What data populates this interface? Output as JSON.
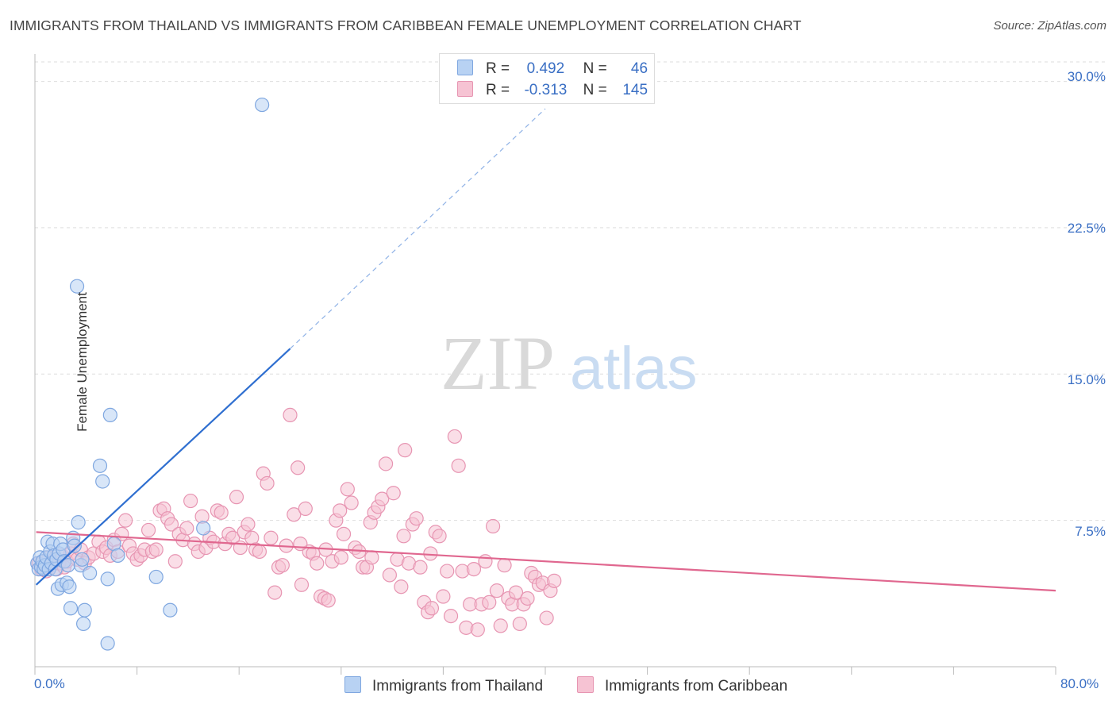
{
  "header": {
    "title": "IMMIGRANTS FROM THAILAND VS IMMIGRANTS FROM CARIBBEAN FEMALE UNEMPLOYMENT CORRELATION CHART",
    "source": "Source: ZipAtlas.com"
  },
  "watermark": {
    "zip": "ZIP",
    "atlas": "atlas"
  },
  "legend": {
    "r_label": "R =",
    "n_label": "N =",
    "thailand": {
      "r": "0.492",
      "n": "46"
    },
    "caribbean": {
      "r": "-0.313",
      "n": "145"
    }
  },
  "colors": {
    "thailand_fill": "#b8d2f3",
    "thailand_stroke": "#7fa7e0",
    "thailand_line": "#2f6fd0",
    "caribbean_fill": "#f6c3d3",
    "caribbean_stroke": "#e795b2",
    "caribbean_line": "#e0678f",
    "tick_text": "#3a6fc4",
    "grid": "#dddddd"
  },
  "chart_data": {
    "type": "scatter",
    "title": "IMMIGRANTS FROM THAILAND VS IMMIGRANTS FROM CARIBBEAN FEMALE UNEMPLOYMENT CORRELATION CHART",
    "xlabel": "",
    "ylabel": "Female Unemployment",
    "xlim": [
      0,
      80
    ],
    "ylim": [
      0,
      31
    ],
    "x_tick_labels": [
      "0.0%",
      "80.0%"
    ],
    "y_ticks": [
      7.5,
      15.0,
      22.5,
      30.0
    ],
    "y_tick_labels": [
      "7.5%",
      "15.0%",
      "22.5%",
      "30.0%"
    ],
    "grid": "horizontal dashed",
    "legend_position": "top-center",
    "series": [
      {
        "name": "Immigrants from Thailand",
        "r": 0.492,
        "n": 46,
        "trend": {
          "x0": 0.1,
          "y0": 4.2,
          "x1": 20.0,
          "y1": 16.3,
          "dashed_to_x": 40.0,
          "dashed_to_y": 28.6
        },
        "points": [
          [
            0.2,
            5.3
          ],
          [
            0.3,
            5.0
          ],
          [
            0.4,
            5.6
          ],
          [
            0.5,
            5.1
          ],
          [
            0.6,
            5.4
          ],
          [
            0.7,
            5.0
          ],
          [
            0.8,
            5.2
          ],
          [
            0.9,
            5.6
          ],
          [
            1.0,
            6.4
          ],
          [
            1.1,
            5.0
          ],
          [
            1.2,
            5.9
          ],
          [
            1.3,
            5.3
          ],
          [
            1.4,
            6.3
          ],
          [
            1.5,
            5.7
          ],
          [
            1.6,
            5.0
          ],
          [
            1.7,
            5.5
          ],
          [
            1.8,
            4.0
          ],
          [
            1.9,
            5.8
          ],
          [
            2.0,
            6.3
          ],
          [
            2.1,
            4.2
          ],
          [
            2.2,
            6.0
          ],
          [
            2.3,
            5.4
          ],
          [
            2.5,
            4.3
          ],
          [
            2.6,
            5.2
          ],
          [
            2.7,
            4.1
          ],
          [
            2.8,
            3.0
          ],
          [
            3.0,
            6.6
          ],
          [
            3.1,
            6.2
          ],
          [
            3.3,
            19.5
          ],
          [
            3.4,
            7.4
          ],
          [
            3.6,
            5.2
          ],
          [
            3.7,
            5.5
          ],
          [
            3.8,
            2.2
          ],
          [
            3.9,
            2.9
          ],
          [
            4.3,
            4.8
          ],
          [
            5.7,
            4.5
          ],
          [
            5.9,
            12.9
          ],
          [
            6.2,
            6.3
          ],
          [
            6.5,
            5.7
          ],
          [
            5.1,
            10.3
          ],
          [
            5.3,
            9.5
          ],
          [
            5.7,
            1.2
          ],
          [
            9.5,
            4.6
          ],
          [
            10.6,
            2.9
          ],
          [
            13.2,
            7.1
          ],
          [
            17.8,
            28.8
          ]
        ]
      },
      {
        "name": "Immigrants from Caribbean",
        "r": -0.313,
        "n": 145,
        "trend": {
          "x0": 0.1,
          "y0": 6.9,
          "x1": 80.0,
          "y1": 3.9
        },
        "points": [
          [
            0.3,
            5.3
          ],
          [
            0.5,
            5.0
          ],
          [
            0.7,
            5.4
          ],
          [
            0.9,
            4.9
          ],
          [
            1.1,
            5.6
          ],
          [
            1.3,
            5.2
          ],
          [
            1.5,
            5.5
          ],
          [
            1.7,
            5.0
          ],
          [
            1.9,
            5.3
          ],
          [
            2.1,
            5.7
          ],
          [
            2.3,
            5.1
          ],
          [
            2.5,
            5.4
          ],
          [
            2.8,
            5.8
          ],
          [
            3.0,
            6.3
          ],
          [
            3.3,
            5.5
          ],
          [
            3.6,
            6.0
          ],
          [
            3.9,
            5.3
          ],
          [
            4.2,
            5.6
          ],
          [
            4.6,
            5.8
          ],
          [
            5.0,
            6.4
          ],
          [
            5.3,
            5.9
          ],
          [
            5.6,
            6.1
          ],
          [
            5.9,
            5.7
          ],
          [
            6.2,
            6.5
          ],
          [
            6.5,
            5.9
          ],
          [
            6.8,
            6.8
          ],
          [
            7.1,
            7.5
          ],
          [
            7.4,
            6.2
          ],
          [
            7.7,
            5.8
          ],
          [
            8.0,
            5.5
          ],
          [
            8.3,
            5.7
          ],
          [
            8.6,
            6.0
          ],
          [
            8.9,
            7.0
          ],
          [
            9.2,
            5.9
          ],
          [
            9.5,
            6.0
          ],
          [
            9.8,
            8.0
          ],
          [
            10.1,
            8.1
          ],
          [
            10.4,
            7.6
          ],
          [
            10.7,
            7.3
          ],
          [
            11.0,
            5.4
          ],
          [
            11.3,
            6.8
          ],
          [
            11.6,
            6.5
          ],
          [
            11.9,
            7.1
          ],
          [
            12.2,
            8.5
          ],
          [
            12.5,
            6.3
          ],
          [
            12.8,
            5.9
          ],
          [
            13.1,
            7.7
          ],
          [
            13.4,
            6.1
          ],
          [
            13.7,
            6.6
          ],
          [
            14.0,
            6.4
          ],
          [
            14.3,
            8.0
          ],
          [
            14.6,
            7.9
          ],
          [
            14.9,
            6.3
          ],
          [
            15.2,
            6.8
          ],
          [
            15.5,
            6.6
          ],
          [
            15.8,
            8.7
          ],
          [
            16.1,
            6.1
          ],
          [
            16.4,
            6.9
          ],
          [
            16.7,
            7.3
          ],
          [
            17.0,
            6.6
          ],
          [
            17.3,
            6.0
          ],
          [
            17.6,
            5.9
          ],
          [
            17.9,
            9.9
          ],
          [
            18.2,
            9.4
          ],
          [
            18.5,
            6.6
          ],
          [
            18.8,
            3.8
          ],
          [
            19.1,
            5.1
          ],
          [
            19.4,
            5.2
          ],
          [
            19.7,
            6.2
          ],
          [
            20.0,
            12.9
          ],
          [
            20.3,
            7.8
          ],
          [
            20.6,
            10.2
          ],
          [
            20.9,
            4.2
          ],
          [
            21.2,
            8.1
          ],
          [
            21.5,
            5.9
          ],
          [
            21.8,
            5.8
          ],
          [
            22.1,
            5.3
          ],
          [
            22.4,
            3.6
          ],
          [
            22.7,
            3.5
          ],
          [
            23.0,
            3.4
          ],
          [
            23.3,
            5.4
          ],
          [
            23.6,
            7.5
          ],
          [
            23.9,
            8.0
          ],
          [
            24.2,
            6.8
          ],
          [
            24.5,
            9.1
          ],
          [
            24.8,
            8.4
          ],
          [
            25.1,
            6.1
          ],
          [
            25.4,
            5.9
          ],
          [
            25.7,
            5.1
          ],
          [
            26.0,
            5.1
          ],
          [
            26.3,
            7.4
          ],
          [
            26.6,
            7.9
          ],
          [
            26.9,
            8.2
          ],
          [
            27.2,
            8.6
          ],
          [
            27.5,
            10.4
          ],
          [
            27.8,
            4.7
          ],
          [
            28.1,
            8.9
          ],
          [
            28.4,
            5.5
          ],
          [
            28.7,
            4.1
          ],
          [
            29.0,
            11.1
          ],
          [
            29.3,
            5.3
          ],
          [
            29.6,
            7.3
          ],
          [
            29.9,
            7.6
          ],
          [
            30.2,
            5.1
          ],
          [
            30.5,
            3.3
          ],
          [
            30.8,
            2.8
          ],
          [
            31.1,
            3.0
          ],
          [
            31.4,
            6.9
          ],
          [
            31.7,
            6.7
          ],
          [
            32.0,
            3.6
          ],
          [
            32.3,
            4.9
          ],
          [
            32.6,
            2.6
          ],
          [
            32.9,
            11.8
          ],
          [
            33.2,
            10.3
          ],
          [
            33.5,
            4.9
          ],
          [
            33.8,
            2.0
          ],
          [
            34.1,
            3.2
          ],
          [
            34.4,
            5.0
          ],
          [
            34.7,
            1.9
          ],
          [
            35.0,
            3.2
          ],
          [
            35.3,
            5.4
          ],
          [
            35.6,
            3.3
          ],
          [
            35.9,
            7.2
          ],
          [
            36.2,
            3.9
          ],
          [
            36.5,
            2.1
          ],
          [
            36.8,
            5.2
          ],
          [
            37.1,
            3.5
          ],
          [
            37.4,
            3.2
          ],
          [
            37.7,
            3.8
          ],
          [
            38.0,
            2.2
          ],
          [
            38.3,
            3.2
          ],
          [
            38.6,
            3.5
          ],
          [
            38.9,
            4.8
          ],
          [
            39.2,
            4.6
          ],
          [
            39.5,
            4.2
          ],
          [
            39.8,
            4.3
          ],
          [
            40.1,
            2.5
          ],
          [
            40.4,
            3.9
          ],
          [
            40.7,
            4.4
          ],
          [
            20.8,
            6.3
          ],
          [
            22.8,
            6.0
          ],
          [
            24.0,
            5.6
          ],
          [
            26.4,
            5.6
          ],
          [
            28.9,
            6.7
          ],
          [
            31.0,
            5.8
          ]
        ]
      }
    ]
  },
  "axes": {
    "ylabel": "Female Unemployment",
    "x_min_label": "0.0%",
    "x_max_label": "80.0%",
    "y_labels": [
      "7.5%",
      "15.0%",
      "22.5%",
      "30.0%"
    ]
  },
  "bottom_legend": {
    "thailand": "Immigrants from Thailand",
    "caribbean": "Immigrants from Caribbean"
  }
}
